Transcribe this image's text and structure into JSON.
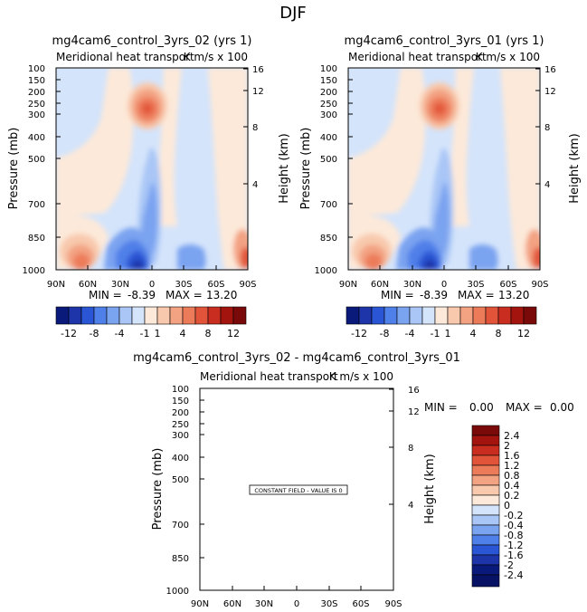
{
  "chart_data": {
    "type": "heatmap",
    "title": "DJF",
    "panels": [
      {
        "id": "p1",
        "title": "mg4cam6_control_3yrs_02 (yrs 1)",
        "subtitle_left": "Meridional heat transport",
        "subtitle_right": "K m/s x 100",
        "ylabel": "Pressure (mb)",
        "ylabel_right": "Height (km)",
        "min_label": "MIN =",
        "min_value": "-8.39",
        "max_label": "MAX =",
        "max_value": "13.20",
        "field": "variable"
      },
      {
        "id": "p2",
        "title": "mg4cam6_control_3yrs_01 (yrs 1)",
        "subtitle_left": "Meridional heat transport",
        "subtitle_right": "K m/s x 100",
        "ylabel": "Pressure (mb)",
        "ylabel_right": "Height (km)",
        "min_label": "MIN =",
        "min_value": "-8.39",
        "max_label": "MAX =",
        "max_value": "13.20",
        "field": "variable"
      },
      {
        "id": "p3",
        "title": "mg4cam6_control_3yrs_02 - mg4cam6_control_3yrs_01",
        "subtitle_left": "Meridional heat transport",
        "subtitle_right": "K m/s x 100",
        "ylabel": "Pressure (mb)",
        "ylabel_right": "Height (km)",
        "min_label": "MIN =",
        "min_value": "0.00",
        "max_label": "MAX =",
        "max_value": "0.00",
        "annotation": "CONSTANT FIELD - VALUE IS 0",
        "field": "constant"
      }
    ],
    "x_ticks": [
      "90N",
      "60N",
      "30N",
      "0",
      "30S",
      "60S",
      "90S"
    ],
    "x_values": [
      90,
      60,
      30,
      0,
      -30,
      -60,
      -90
    ],
    "pressure_ticks": [
      100,
      150,
      200,
      250,
      300,
      400,
      500,
      700,
      850,
      1000
    ],
    "pressure_range": [
      100,
      1000
    ],
    "height_ticks": [
      16,
      12,
      8,
      4
    ],
    "main_colorbar": {
      "labels": [
        "-12",
        "-8",
        "-4",
        "-1",
        "1",
        "4",
        "8",
        "12"
      ],
      "colors": [
        "#0a1a7a",
        "#1d35a8",
        "#2a55d4",
        "#4f7fe8",
        "#7aa3f0",
        "#a9c6f6",
        "#d4e4fb",
        "#fde9d9",
        "#f8c9ad",
        "#f3a282",
        "#ec7b5a",
        "#e2543a",
        "#c92d1f",
        "#a4140f",
        "#7a0a0a"
      ]
    },
    "diff_colorbar": {
      "labels": [
        "2.4",
        "2",
        "1.6",
        "1.2",
        "0.8",
        "0.4",
        "0.2",
        "0",
        "-0.2",
        "-0.4",
        "-0.8",
        "-1.2",
        "-1.6",
        "-2",
        "-2.4"
      ],
      "colors": [
        "#7a0a0a",
        "#a4140f",
        "#c92d1f",
        "#e2543a",
        "#ec7b5a",
        "#f3a282",
        "#f8c9ad",
        "#fde9d9",
        "#d4e4fb",
        "#a9c6f6",
        "#7aa3f0",
        "#4f7fe8",
        "#2a55d4",
        "#1d35a8",
        "#0a1a7a",
        "#081265"
      ]
    }
  }
}
